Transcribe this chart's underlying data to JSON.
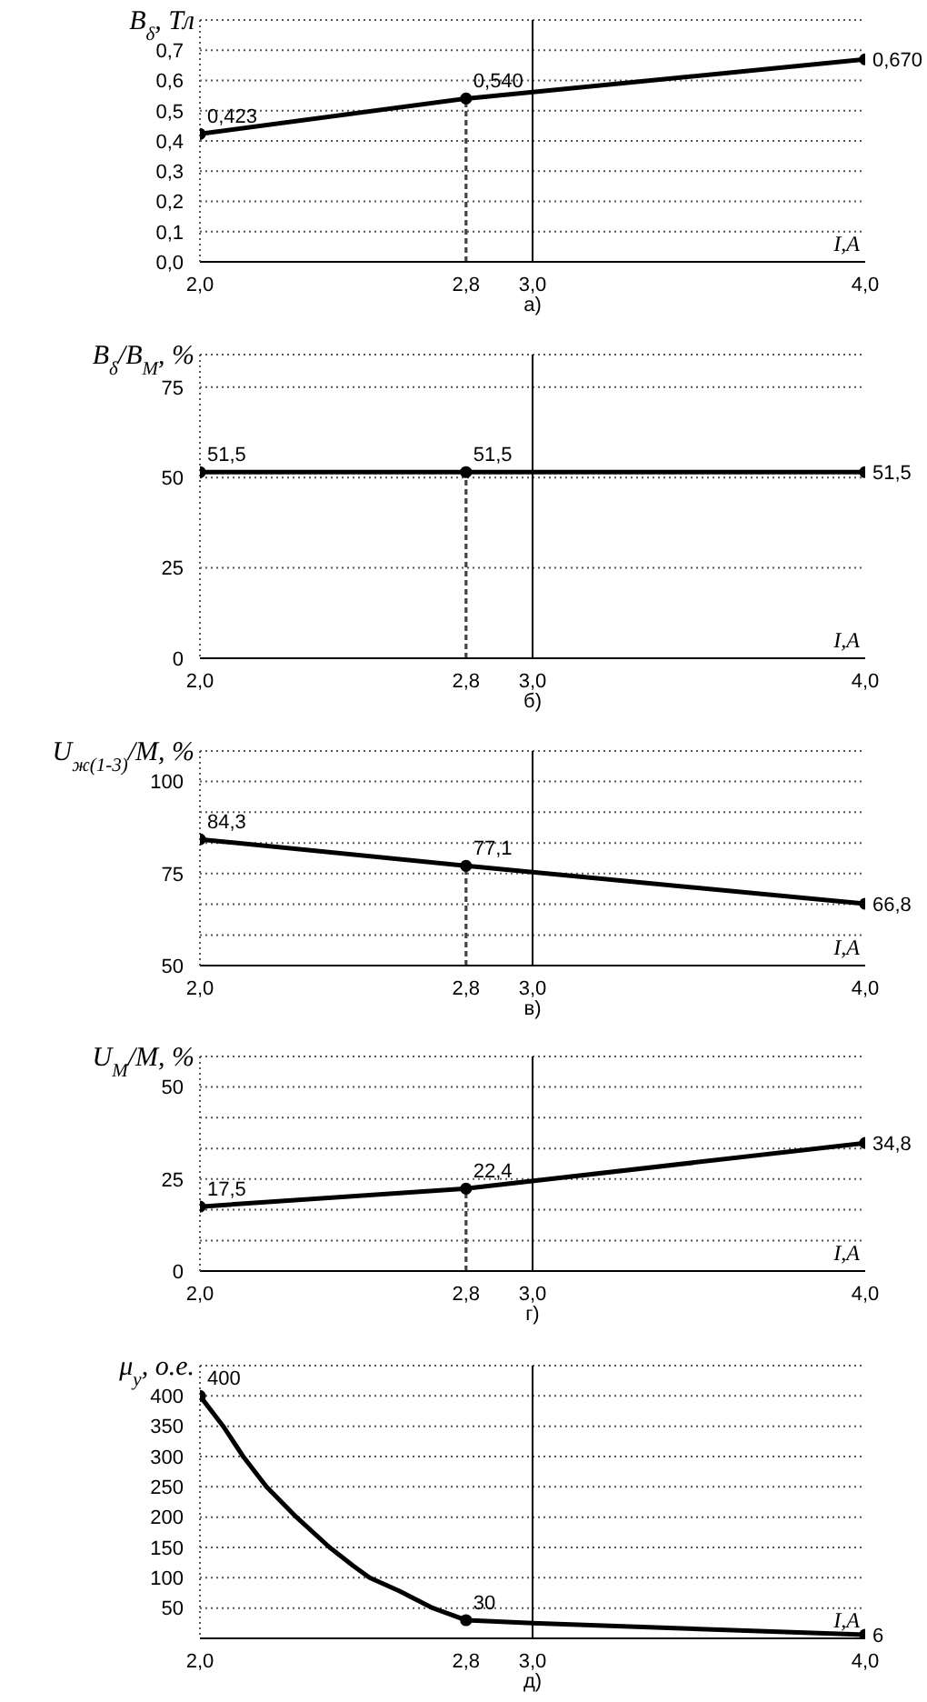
{
  "chart_data": [
    {
      "type": "line",
      "ylabel": "B$_{δ}$, Тл",
      "xlabel": "I,A",
      "annotations": [
        "а)"
      ],
      "xlim": [
        2.0,
        4.0
      ],
      "xticks": [
        {
          "value": 2.0,
          "label": "2,0"
        },
        {
          "value": 2.8,
          "label": "2,8"
        },
        {
          "value": 3.0,
          "label": "3,0"
        },
        {
          "value": 4.0,
          "label": "4,0"
        }
      ],
      "ylim": [
        0,
        0.8
      ],
      "yticks": [
        {
          "value": 0,
          "label": "0,0"
        },
        {
          "value": 0.1,
          "label": "0,1"
        },
        {
          "value": 0.2,
          "label": "0,2"
        },
        {
          "value": 0.3,
          "label": "0,3"
        },
        {
          "value": 0.4,
          "label": "0,4"
        },
        {
          "value": 0.5,
          "label": "0,5"
        },
        {
          "value": 0.6,
          "label": "0,6"
        },
        {
          "value": 0.7,
          "label": "0,7"
        }
      ],
      "grid": "y",
      "ref_lines": [
        {
          "axis": "x",
          "value": 3.0,
          "color": "#000000"
        }
      ],
      "series": [
        {
          "color": "#000000",
          "x": [
            2.0,
            2.8,
            4.0
          ],
          "values": [
            0.423,
            0.54,
            0.67
          ],
          "marker": "circle",
          "value_labels": [
            "0,423",
            "0,540",
            "0,670"
          ]
        },
        {
          "color": "#444444",
          "x": [
            2.8,
            2.8
          ],
          "values": [
            0,
            0.54
          ],
          "marker": "none",
          "line_style": "dotted"
        }
      ]
    },
    {
      "type": "line",
      "ylabel": "B$_{δ}$/B$_{M}$, %",
      "xlabel": "I,A",
      "annotations": [
        "б)"
      ],
      "xlim": [
        2.0,
        4.0
      ],
      "xticks": [
        {
          "value": 2.0,
          "label": "2,0"
        },
        {
          "value": 2.8,
          "label": "2,8"
        },
        {
          "value": 3.0,
          "label": "3,0"
        },
        {
          "value": 4.0,
          "label": "4,0"
        }
      ],
      "ylim": [
        0,
        84
      ],
      "yticks": [
        0,
        25,
        50,
        75
      ],
      "grid": "y",
      "ref_lines": [
        {
          "axis": "x",
          "value": 3.0,
          "color": "#000000"
        }
      ],
      "series": [
        {
          "color": "#000000",
          "x": [
            2.0,
            2.8,
            4.0
          ],
          "values": [
            51.5,
            51.5,
            51.5
          ],
          "marker": "circle",
          "value_labels": [
            "51,5",
            "51,5",
            "51,5"
          ]
        },
        {
          "color": "#444444",
          "x": [
            2.8,
            2.8
          ],
          "values": [
            0,
            51.5
          ],
          "marker": "none",
          "line_style": "dotted"
        }
      ]
    },
    {
      "type": "line",
      "ylabel": "U$_{ж(1-3)}$/M, %",
      "xlabel": "I,A",
      "annotations": [
        "в)"
      ],
      "xlim": [
        2.0,
        4.0
      ],
      "xticks": [
        {
          "value": 2.0,
          "label": "2,0"
        },
        {
          "value": 2.8,
          "label": "2,8"
        },
        {
          "value": 3.0,
          "label": "3,0"
        },
        {
          "value": 4.0,
          "label": "4,0"
        }
      ],
      "ylim": [
        50,
        108.3
      ],
      "yticks": [
        50,
        {
          "value": 58.3,
          "label": null
        },
        {
          "value": 66.7,
          "label": null
        },
        75,
        {
          "value": 83.3,
          "label": null
        },
        {
          "value": 91.7,
          "label": null
        },
        100
      ],
      "grid": "y",
      "ref_lines": [
        {
          "axis": "x",
          "value": 3.0,
          "color": "#000000"
        }
      ],
      "series": [
        {
          "color": "#000000",
          "x": [
            2.0,
            2.8,
            4.0
          ],
          "values": [
            84.3,
            77.1,
            66.8
          ],
          "marker": "circle",
          "value_labels": [
            "84,3",
            "77,1",
            "66,8"
          ]
        },
        {
          "color": "#444444",
          "x": [
            2.8,
            2.8
          ],
          "values": [
            50,
            77.1
          ],
          "marker": "none",
          "line_style": "dotted"
        }
      ]
    },
    {
      "type": "line",
      "ylabel": "U$_{M}$/M, %",
      "xlabel": "I,A",
      "annotations": [
        "г)"
      ],
      "xlim": [
        2.0,
        4.0
      ],
      "xticks": [
        {
          "value": 2.0,
          "label": "2,0"
        },
        {
          "value": 2.8,
          "label": "2,8"
        },
        {
          "value": 3.0,
          "label": "3,0"
        },
        {
          "value": 4.0,
          "label": "4,0"
        }
      ],
      "ylim": [
        0,
        58.3
      ],
      "yticks": [
        0,
        {
          "value": 8.3,
          "label": null
        },
        {
          "value": 16.7,
          "label": null
        },
        25,
        {
          "value": 33.3,
          "label": null
        },
        {
          "value": 41.7,
          "label": null
        },
        50
      ],
      "grid": "y",
      "ref_lines": [
        {
          "axis": "x",
          "value": 3.0,
          "color": "#000000"
        }
      ],
      "series": [
        {
          "color": "#000000",
          "x": [
            2.0,
            2.8,
            4.0
          ],
          "values": [
            17.5,
            22.4,
            34.8
          ],
          "marker": "circle",
          "value_labels": [
            "17,5",
            "22,4",
            "34,8"
          ]
        },
        {
          "color": "#444444",
          "x": [
            2.8,
            2.8
          ],
          "values": [
            0,
            22.4
          ],
          "marker": "none",
          "line_style": "dotted"
        }
      ]
    },
    {
      "type": "line",
      "ylabel": "μ$_{y}$, о.е.",
      "xlabel": "I,A",
      "annotations": [
        "д)"
      ],
      "xlim": [
        2.0,
        4.0
      ],
      "xticks": [
        {
          "value": 2.0,
          "label": "2,0"
        },
        {
          "value": 2.8,
          "label": "2,8"
        },
        {
          "value": 3.0,
          "label": "3,0"
        },
        {
          "value": 4.0,
          "label": "4,0"
        }
      ],
      "ylim": [
        0,
        450
      ],
      "yticks": [
        50,
        100,
        150,
        200,
        250,
        300,
        350,
        400
      ],
      "grid": "y",
      "ref_lines": [
        {
          "axis": "x",
          "value": 3.0,
          "color": "#000000"
        }
      ],
      "series": [
        {
          "color": "#000000",
          "x": [
            2.0,
            2.07,
            2.13,
            2.2,
            2.29,
            2.39,
            2.46,
            2.51,
            2.6,
            2.7,
            2.8,
            3.0,
            4.0
          ],
          "values": [
            400,
            350,
            300,
            250,
            200,
            150,
            120,
            100,
            78,
            50,
            30,
            25,
            6
          ],
          "marker": "none"
        },
        {
          "type": "scatter",
          "color": "#000000",
          "x": [
            2.0,
            2.8,
            4.0
          ],
          "values": [
            400,
            30,
            6
          ],
          "marker": "circle",
          "value_labels": [
            "400",
            "30",
            "6"
          ]
        }
      ]
    }
  ]
}
